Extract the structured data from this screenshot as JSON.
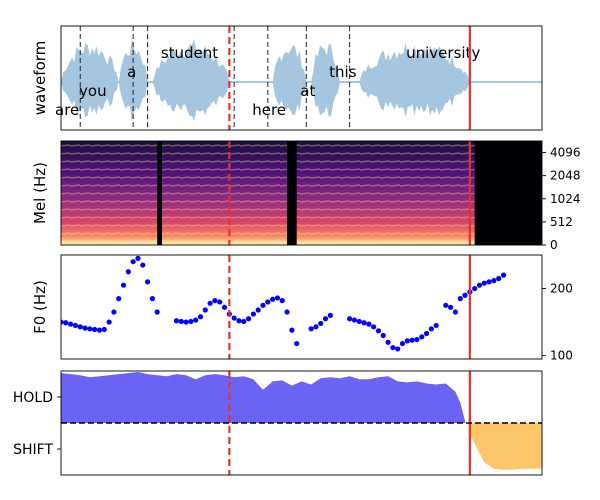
{
  "chart_data": [
    {
      "type": "area",
      "ylabel": "waveform",
      "words": [
        {
          "text": "are",
          "x": 0.0
        },
        {
          "text": "you",
          "x": 0.05
        },
        {
          "text": "a",
          "x": 0.15
        },
        {
          "text": "student",
          "x": 0.22
        },
        {
          "text": "here",
          "x": 0.41
        },
        {
          "text": "at",
          "x": 0.51
        },
        {
          "text": "this",
          "x": 0.57
        },
        {
          "text": "university",
          "x": 0.73
        }
      ],
      "word_boundaries": [
        0.04,
        0.15,
        0.18,
        0.36,
        0.43,
        0.51,
        0.6
      ],
      "voiced_segments": [
        [
          0.0,
          0.12
        ],
        [
          0.12,
          0.18
        ],
        [
          0.19,
          0.35
        ],
        [
          0.44,
          0.51
        ],
        [
          0.52,
          0.58
        ],
        [
          0.62,
          0.85
        ]
      ],
      "markers": [
        {
          "x": 0.35,
          "color": "#e8302a",
          "style": "dashed"
        },
        {
          "x": 0.85,
          "color": "#e8302a",
          "style": "solid"
        }
      ],
      "xlim": [
        0,
        1
      ]
    },
    {
      "type": "heatmap",
      "ylabel": "Mel (Hz)",
      "yticks": [
        "0",
        "512",
        "1024",
        "2048",
        "4096"
      ],
      "silence_gaps": [
        [
          0.2,
          0.21
        ],
        [
          0.47,
          0.49
        ],
        [
          0.86,
          1.0
        ]
      ],
      "xlim": [
        0,
        1
      ]
    },
    {
      "type": "scatter",
      "ylabel": "F0 (Hz)",
      "yticks": [
        100,
        200
      ],
      "ylim": [
        95,
        250
      ],
      "points": [
        [
          0.0,
          150
        ],
        [
          0.01,
          149
        ],
        [
          0.02,
          147
        ],
        [
          0.03,
          145
        ],
        [
          0.04,
          143
        ],
        [
          0.05,
          141
        ],
        [
          0.06,
          140
        ],
        [
          0.07,
          139
        ],
        [
          0.08,
          138
        ],
        [
          0.09,
          139
        ],
        [
          0.1,
          150
        ],
        [
          0.11,
          165
        ],
        [
          0.12,
          185
        ],
        [
          0.13,
          205
        ],
        [
          0.14,
          225
        ],
        [
          0.15,
          240
        ],
        [
          0.16,
          245
        ],
        [
          0.17,
          235
        ],
        [
          0.18,
          210
        ],
        [
          0.19,
          185
        ],
        [
          0.2,
          165
        ],
        [
          0.24,
          152
        ],
        [
          0.25,
          151
        ],
        [
          0.26,
          150
        ],
        [
          0.27,
          151
        ],
        [
          0.28,
          153
        ],
        [
          0.29,
          158
        ],
        [
          0.3,
          168
        ],
        [
          0.31,
          178
        ],
        [
          0.32,
          182
        ],
        [
          0.33,
          180
        ],
        [
          0.34,
          172
        ],
        [
          0.35,
          162
        ],
        [
          0.36,
          156
        ],
        [
          0.37,
          152
        ],
        [
          0.38,
          151
        ],
        [
          0.39,
          155
        ],
        [
          0.4,
          162
        ],
        [
          0.41,
          168
        ],
        [
          0.42,
          175
        ],
        [
          0.43,
          180
        ],
        [
          0.44,
          184
        ],
        [
          0.45,
          186
        ],
        [
          0.46,
          182
        ],
        [
          0.47,
          165
        ],
        [
          0.48,
          138
        ],
        [
          0.49,
          118
        ],
        [
          0.52,
          140
        ],
        [
          0.53,
          143
        ],
        [
          0.54,
          148
        ],
        [
          0.55,
          155
        ],
        [
          0.56,
          160
        ],
        [
          0.6,
          155
        ],
        [
          0.61,
          153
        ],
        [
          0.62,
          151
        ],
        [
          0.63,
          149
        ],
        [
          0.64,
          147
        ],
        [
          0.65,
          143
        ],
        [
          0.66,
          137
        ],
        [
          0.67,
          130
        ],
        [
          0.68,
          120
        ],
        [
          0.69,
          112
        ],
        [
          0.7,
          110
        ],
        [
          0.71,
          118
        ],
        [
          0.72,
          122
        ],
        [
          0.73,
          123
        ],
        [
          0.74,
          124
        ],
        [
          0.75,
          128
        ],
        [
          0.76,
          133
        ],
        [
          0.77,
          140
        ],
        [
          0.78,
          145
        ],
        [
          0.8,
          175
        ],
        [
          0.81,
          172
        ],
        [
          0.82,
          165
        ],
        [
          0.83,
          185
        ],
        [
          0.84,
          190
        ],
        [
          0.85,
          195
        ],
        [
          0.86,
          200
        ],
        [
          0.87,
          205
        ],
        [
          0.88,
          208
        ],
        [
          0.89,
          210
        ],
        [
          0.9,
          212
        ],
        [
          0.91,
          215
        ],
        [
          0.92,
          220
        ]
      ],
      "markers": [
        {
          "x": 0.35,
          "color": "#e8302a",
          "style": "dashed"
        },
        {
          "x": 0.85,
          "color": "#e8302a",
          "style": "solid"
        }
      ],
      "xlim": [
        0,
        1
      ]
    },
    {
      "type": "area",
      "yticks": [
        "HOLD",
        "SHIFT"
      ],
      "ylim": [
        0,
        1
      ],
      "threshold": 0.5,
      "hold_color": "#6a63f4",
      "shift_color": "#fec66a",
      "series": [
        {
          "values": [
            [
              0.0,
              0.98
            ],
            [
              0.02,
              0.97
            ],
            [
              0.04,
              0.96
            ],
            [
              0.06,
              0.94
            ],
            [
              0.08,
              0.95
            ],
            [
              0.1,
              0.96
            ],
            [
              0.12,
              0.97
            ],
            [
              0.14,
              0.98
            ],
            [
              0.16,
              0.99
            ],
            [
              0.18,
              0.97
            ],
            [
              0.2,
              0.96
            ],
            [
              0.22,
              0.95
            ],
            [
              0.24,
              0.97
            ],
            [
              0.26,
              0.96
            ],
            [
              0.28,
              0.92
            ],
            [
              0.3,
              0.96
            ],
            [
              0.32,
              0.97
            ],
            [
              0.34,
              0.96
            ],
            [
              0.36,
              0.94
            ],
            [
              0.38,
              0.95
            ],
            [
              0.4,
              0.92
            ],
            [
              0.42,
              0.82
            ],
            [
              0.44,
              0.9
            ],
            [
              0.46,
              0.91
            ],
            [
              0.48,
              0.86
            ],
            [
              0.5,
              0.9
            ],
            [
              0.52,
              0.87
            ],
            [
              0.54,
              0.93
            ],
            [
              0.56,
              0.94
            ],
            [
              0.58,
              0.93
            ],
            [
              0.6,
              0.95
            ],
            [
              0.62,
              0.92
            ],
            [
              0.64,
              0.92
            ],
            [
              0.66,
              0.94
            ],
            [
              0.68,
              0.95
            ],
            [
              0.7,
              0.9
            ],
            [
              0.72,
              0.89
            ],
            [
              0.74,
              0.9
            ],
            [
              0.76,
              0.88
            ],
            [
              0.78,
              0.87
            ],
            [
              0.8,
              0.88
            ],
            [
              0.82,
              0.8
            ],
            [
              0.83,
              0.7
            ],
            [
              0.84,
              0.52
            ],
            [
              0.85,
              0.4
            ],
            [
              0.86,
              0.3
            ],
            [
              0.88,
              0.12
            ],
            [
              0.9,
              0.06
            ],
            [
              0.92,
              0.05
            ],
            [
              0.94,
              0.05
            ],
            [
              0.96,
              0.06
            ],
            [
              0.98,
              0.06
            ],
            [
              1.0,
              0.06
            ]
          ]
        }
      ],
      "markers": [
        {
          "x": 0.35,
          "color": "#e8302a",
          "style": "dashed"
        },
        {
          "x": 0.85,
          "color": "#e8302a",
          "style": "solid"
        }
      ],
      "xlim": [
        0,
        1
      ]
    }
  ]
}
